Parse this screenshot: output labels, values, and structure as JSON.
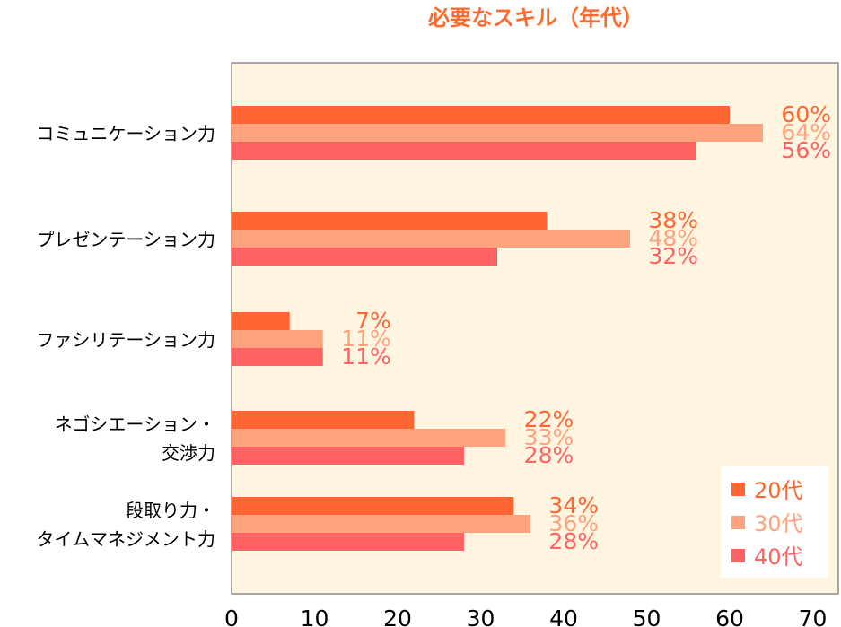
{
  "chart_data": {
    "type": "bar",
    "orientation": "horizontal",
    "title": "必要なスキル（年代）",
    "categories": [
      [
        "コミュニケーション力"
      ],
      [
        "プレゼンテーション力"
      ],
      [
        "ファシリテーション力"
      ],
      [
        "ネゴシエーション・",
        "交渉力"
      ],
      [
        "段取り力・",
        "タイムマネジメント力"
      ]
    ],
    "series": [
      {
        "name": "20代",
        "values": [
          60,
          38,
          7,
          22,
          34
        ],
        "labels": [
          "60%",
          "38%",
          "7%",
          "22%",
          "34%"
        ],
        "color": "#ff6633"
      },
      {
        "name": "30代",
        "values": [
          64,
          48,
          11,
          33,
          36
        ],
        "labels": [
          "64%",
          "48%",
          "11%",
          "33%",
          "36%"
        ],
        "color": "#ffa27e"
      },
      {
        "name": "40代",
        "values": [
          56,
          32,
          11,
          28,
          28
        ],
        "labels": [
          "56%",
          "32%",
          "11%",
          "28%",
          "28%"
        ],
        "color": "#ff6262"
      }
    ],
    "xlim": [
      0,
      70
    ],
    "xticks": [
      "0",
      "10",
      "20",
      "30",
      "40",
      "50",
      "60",
      "70"
    ],
    "grid": false,
    "legend_position": "bottom-right",
    "plot_background": "#fff5e0"
  }
}
